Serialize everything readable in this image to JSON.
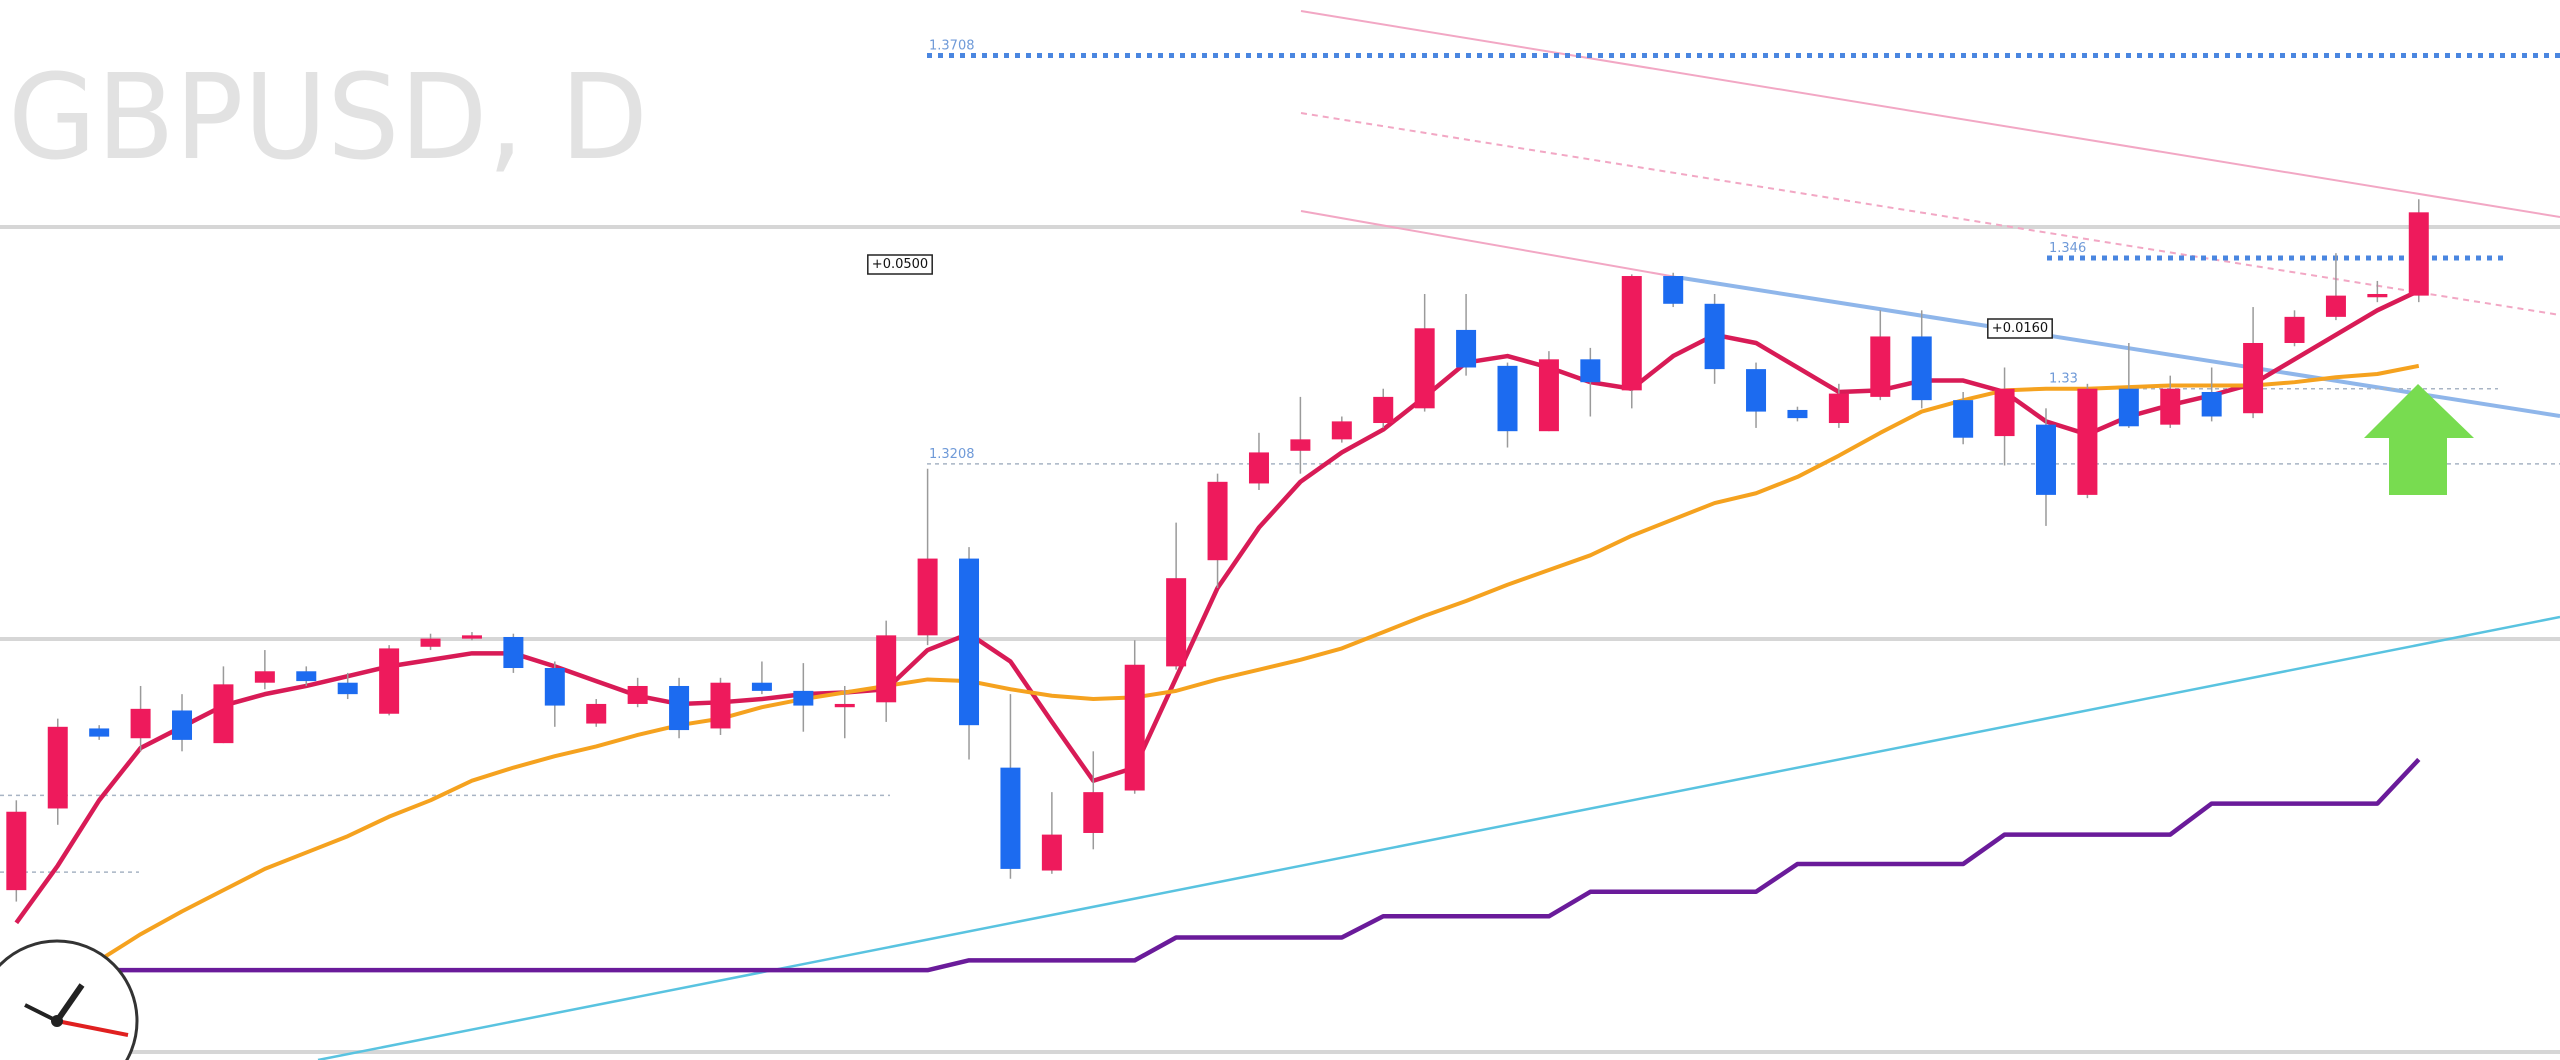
{
  "chart_data": {
    "type": "candlestick",
    "title": "GBPUSD, D",
    "ylim": [
      1.2478,
      1.3776
    ],
    "up_color": "#ee1a5c",
    "down_color": "#1c6bf0",
    "open": [
      1.2686,
      1.2786,
      1.2884,
      1.2872,
      1.2906,
      1.2866,
      1.294,
      1.2954,
      1.294,
      1.2902,
      1.2984,
      1.2994,
      1.2996,
      1.2958,
      1.289,
      1.2914,
      1.2936,
      1.2884,
      1.294,
      1.293,
      1.291,
      1.2916,
      1.2998,
      1.3092,
      1.2836,
      1.271,
      1.2756,
      1.2808,
      1.296,
      1.309,
      1.3184,
      1.3224,
      1.3238,
      1.3258,
      1.3276,
      1.3372,
      1.3328,
      1.3248,
      1.3336,
      1.3298,
      1.3438,
      1.3404,
      1.3324,
      1.3274,
      1.3258,
      1.329,
      1.3364,
      1.3286,
      1.3242,
      1.3256,
      1.317,
      1.33,
      1.3256,
      1.3296,
      1.327,
      1.3356,
      1.3388,
      1.3412,
      1.3414
    ],
    "high": [
      1.2796,
      1.2896,
      1.2888,
      1.2936,
      1.2926,
      1.296,
      1.298,
      1.296,
      1.2952,
      1.2986,
      1.3,
      1.3002,
      1.3,
      1.2966,
      1.292,
      1.2946,
      1.2946,
      1.2946,
      1.2966,
      1.2964,
      1.2936,
      1.3016,
      1.3202,
      1.3106,
      1.2926,
      1.2806,
      1.2856,
      1.2992,
      1.3136,
      1.3196,
      1.3246,
      1.329,
      1.3266,
      1.33,
      1.3416,
      1.3416,
      1.3332,
      1.3346,
      1.335,
      1.344,
      1.3442,
      1.3416,
      1.3332,
      1.3278,
      1.3306,
      1.3396,
      1.3396,
      1.3296,
      1.3326,
      1.3276,
      1.3306,
      1.3356,
      1.3316,
      1.3326,
      1.34,
      1.3396,
      1.3466,
      1.3432,
      1.3532
    ],
    "low": [
      1.2672,
      1.2766,
      1.287,
      1.2856,
      1.2856,
      1.2866,
      1.2932,
      1.2936,
      1.292,
      1.29,
      1.298,
      1.2992,
      1.2952,
      1.2886,
      1.2886,
      1.291,
      1.2872,
      1.2876,
      1.2926,
      1.288,
      1.2872,
      1.2892,
      1.2986,
      1.2846,
      1.27,
      1.2706,
      1.2736,
      1.2804,
      1.2956,
      1.3056,
      1.3176,
      1.3196,
      1.3234,
      1.3252,
      1.3272,
      1.3316,
      1.3228,
      1.3248,
      1.3266,
      1.3276,
      1.34,
      1.3306,
      1.3252,
      1.326,
      1.3252,
      1.3286,
      1.3276,
      1.3232,
      1.3206,
      1.3132,
      1.3166,
      1.3252,
      1.3252,
      1.326,
      1.3264,
      1.3352,
      1.3384,
      1.3406,
      1.3406
    ],
    "close": [
      1.2782,
      1.2886,
      1.2874,
      1.2908,
      1.287,
      1.2938,
      1.2954,
      1.2942,
      1.2926,
      1.2982,
      1.2994,
      1.2998,
      1.2958,
      1.2912,
      1.2914,
      1.2936,
      1.2882,
      1.294,
      1.293,
      1.2912,
      1.2914,
      1.2998,
      1.3092,
      1.2888,
      1.2712,
      1.2754,
      1.2806,
      1.2962,
      1.3068,
      1.3186,
      1.3222,
      1.3238,
      1.326,
      1.329,
      1.3374,
      1.3326,
      1.3248,
      1.3336,
      1.3308,
      1.3438,
      1.3404,
      1.3324,
      1.3272,
      1.3264,
      1.3294,
      1.3364,
      1.3286,
      1.324,
      1.33,
      1.317,
      1.33,
      1.3254,
      1.33,
      1.3266,
      1.3356,
      1.3388,
      1.3414,
      1.3416,
      1.3516
    ],
    "overlays": [
      {
        "color": "#d81b56",
        "values": [
          1.2646,
          1.2716,
          1.2796,
          1.286,
          1.2886,
          1.2912,
          1.2926,
          1.2936,
          1.2948,
          1.296,
          1.2968,
          1.2976,
          1.2976,
          1.296,
          1.2942,
          1.2924,
          1.2914,
          1.2916,
          1.292,
          1.2926,
          1.2928,
          1.2932,
          1.298,
          1.3,
          1.2966,
          1.2892,
          1.282,
          1.2836,
          1.2946,
          1.3056,
          1.313,
          1.3186,
          1.3222,
          1.325,
          1.329,
          1.3332,
          1.334,
          1.3326,
          1.3308,
          1.33,
          1.334,
          1.3366,
          1.3356,
          1.3326,
          1.3296,
          1.3298,
          1.331,
          1.331,
          1.3296,
          1.326,
          1.3244,
          1.3266,
          1.328,
          1.3292,
          1.3306,
          1.3336,
          1.3366,
          1.3396,
          1.342
        ]
      },
      {
        "color": "#f5a21f",
        "values": [
          null,
          null,
          1.26,
          1.2632,
          1.266,
          1.2686,
          1.2712,
          1.2732,
          1.2752,
          1.2776,
          1.2796,
          1.282,
          1.2836,
          1.285,
          1.2862,
          1.2876,
          1.2888,
          1.2896,
          1.291,
          1.292,
          1.2928,
          1.2936,
          1.2944,
          1.2942,
          1.2932,
          1.2924,
          1.292,
          1.2922,
          1.293,
          1.2944,
          1.2956,
          1.2968,
          1.2982,
          1.3002,
          1.3022,
          1.304,
          1.306,
          1.3078,
          1.3096,
          1.312,
          1.314,
          1.316,
          1.3172,
          1.3192,
          1.3218,
          1.3246,
          1.3272,
          1.3286,
          1.3298,
          1.33,
          1.33,
          1.3302,
          1.3304,
          1.3304,
          1.3304,
          1.3308,
          1.3314,
          1.3318,
          1.3328
        ]
      },
      {
        "color": "#6a1b9a",
        "values": [
          1.2588,
          1.2588,
          1.2588,
          1.2588,
          1.2588,
          1.2588,
          1.2588,
          1.2588,
          1.2588,
          1.2588,
          1.2588,
          1.2588,
          1.2588,
          1.2588,
          1.2588,
          1.2588,
          1.2588,
          1.2588,
          1.2588,
          1.2588,
          1.2588,
          1.2588,
          1.2588,
          1.26,
          1.26,
          1.26,
          1.26,
          1.26,
          1.2628,
          1.2628,
          1.2628,
          1.2628,
          1.2628,
          1.2654,
          1.2654,
          1.2654,
          1.2654,
          1.2654,
          1.2684,
          1.2684,
          1.2684,
          1.2684,
          1.2684,
          1.2718,
          1.2718,
          1.2718,
          1.2718,
          1.2718,
          1.2754,
          1.2754,
          1.2754,
          1.2754,
          1.2754,
          1.2792,
          1.2792,
          1.2792,
          1.2792,
          1.2792,
          1.2846
        ]
      }
    ],
    "levels": [
      1.3708,
      1.346,
      1.33,
      1.3208
    ],
    "guides": [
      1.2802,
      1.2708
    ],
    "annotations": [
      "+0.0500",
      "+0.0160"
    ]
  }
}
